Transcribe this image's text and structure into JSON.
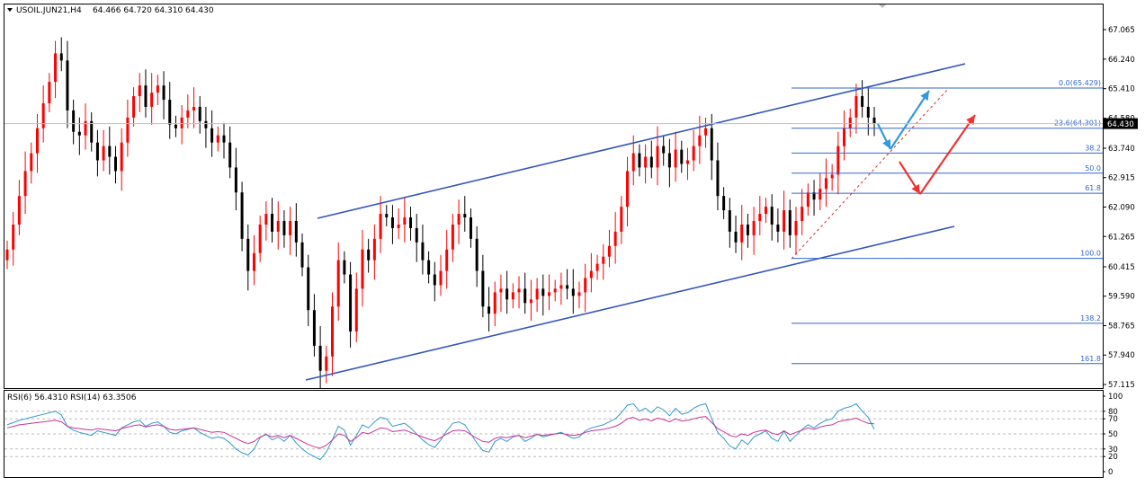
{
  "header": {
    "symbol_timeframe": "USOIL.JUN21,H4",
    "ohlc": "64.466 64.720 64.310 64.430"
  },
  "price_scale": {
    "labels": [
      "67.065",
      "66.240",
      "65.410",
      "64.580",
      "63.740",
      "62.915",
      "62.090",
      "61.265",
      "60.415",
      "59.590",
      "58.765",
      "57.940",
      "57.115"
    ],
    "current_price": "64.430"
  },
  "fibonacci": {
    "levels": [
      {
        "label": "0.0(65.429)",
        "price": 65.429
      },
      {
        "label": "23.6(64.301)",
        "price": 64.301
      },
      {
        "label": "38.2",
        "price": 63.603
      },
      {
        "label": "50.0",
        "price": 63.04
      },
      {
        "label": "61.8",
        "price": 62.476
      },
      {
        "label": "100.0",
        "price": 60.65
      },
      {
        "label": "138.2",
        "price": 58.83
      },
      {
        "label": "161.8",
        "price": 57.7
      }
    ]
  },
  "rsi_panel": {
    "title": "RSI(6) 56.4310  RSI(14) 63.3506",
    "scale_labels": [
      "100",
      "80",
      "70",
      "50",
      "30",
      "20",
      "0"
    ]
  },
  "colors": {
    "bull_candle": "#ff0000",
    "bear_candle": "#000000",
    "channel_line": "#3355bb",
    "fib_line": "#3366cc",
    "arrow_blue": "#3399dd",
    "arrow_red": "#ee3333",
    "rsi6": "#3399cc",
    "rsi14": "#cc3399"
  },
  "chart_data": {
    "type": "candlestick",
    "title": "USOIL.JUN21,H4",
    "ylim": [
      57.0,
      67.6
    ],
    "series_close": [
      60.9,
      61.6,
      62.4,
      63.1,
      63.6,
      64.3,
      65.0,
      65.6,
      66.4,
      66.2,
      64.8,
      64.2,
      64.1,
      64.5,
      63.9,
      63.4,
      63.8,
      63.5,
      63.1,
      63.9,
      64.6,
      65.2,
      65.5,
      64.9,
      65.3,
      65.5,
      65.1,
      64.4,
      64.3,
      64.6,
      64.8,
      64.9,
      64.5,
      64.3,
      63.9,
      64.1,
      63.9,
      63.2,
      62.5,
      61.2,
      60.3,
      60.8,
      61.6,
      61.9,
      61.4,
      61.7,
      61.3,
      61.7,
      61.1,
      60.4,
      59.2,
      58.2,
      57.5,
      57.9,
      59.3,
      60.6,
      60.2,
      58.6,
      59.8,
      60.9,
      60.6,
      61.2,
      61.9,
      61.8,
      61.5,
      61.6,
      61.8,
      61.5,
      61.1,
      60.6,
      60.2,
      59.9,
      60.3,
      60.9,
      61.6,
      61.9,
      61.8,
      61.2,
      60.3,
      59.3,
      59.1,
      59.7,
      59.8,
      59.5,
      59.7,
      59.8,
      59.4,
      59.5,
      59.8,
      59.6,
      59.7,
      59.8,
      59.9,
      59.8,
      59.6,
      59.7,
      60.1,
      60.3,
      60.5,
      60.7,
      61.0,
      61.4,
      62.1,
      63.1,
      63.6,
      63.2,
      63.5,
      63.2,
      63.8,
      63.6,
      63.2,
      63.7,
      63.3,
      63.4,
      63.8,
      64.1,
      64.3,
      63.4,
      62.4,
      62.0,
      61.4,
      61.1,
      61.6,
      61.3,
      61.7,
      61.9,
      62.1,
      61.6,
      61.4,
      62.0,
      61.3,
      61.7,
      62.1,
      62.5,
      62.3,
      62.6,
      62.9,
      63.0,
      63.8,
      64.3,
      64.6,
      65.2,
      64.9,
      64.6,
      64.43
    ],
    "rsi6": [
      62,
      65,
      68,
      70,
      72,
      74,
      76,
      78,
      80,
      75,
      60,
      55,
      52,
      50,
      48,
      54,
      52,
      50,
      48,
      58,
      62,
      66,
      68,
      60,
      64,
      66,
      60,
      52,
      50,
      54,
      56,
      58,
      52,
      48,
      44,
      46,
      44,
      38,
      30,
      25,
      22,
      30,
      45,
      50,
      42,
      46,
      40,
      48,
      38,
      30,
      24,
      20,
      16,
      26,
      42,
      60,
      55,
      35,
      48,
      62,
      58,
      66,
      72,
      70,
      60,
      62,
      64,
      58,
      50,
      42,
      36,
      32,
      42,
      54,
      64,
      66,
      62,
      50,
      38,
      28,
      26,
      40,
      44,
      40,
      46,
      48,
      40,
      44,
      50,
      46,
      48,
      50,
      52,
      48,
      44,
      46,
      54,
      58,
      60,
      62,
      66,
      70,
      78,
      88,
      90,
      80,
      84,
      78,
      86,
      82,
      74,
      84,
      76,
      78,
      84,
      88,
      90,
      70,
      52,
      44,
      34,
      30,
      42,
      36,
      46,
      50,
      54,
      44,
      40,
      54,
      40,
      48,
      56,
      62,
      58,
      64,
      68,
      70,
      80,
      84,
      86,
      90,
      80,
      72,
      56
    ],
    "rsi14": [
      58,
      60,
      62,
      63,
      64,
      65,
      66,
      67,
      68,
      66,
      60,
      58,
      57,
      56,
      55,
      57,
      56,
      55,
      54,
      57,
      59,
      61,
      62,
      59,
      61,
      62,
      60,
      56,
      55,
      56,
      57,
      58,
      56,
      54,
      52,
      53,
      52,
      48,
      44,
      40,
      37,
      40,
      46,
      49,
      46,
      48,
      45,
      48,
      44,
      40,
      36,
      33,
      31,
      35,
      42,
      50,
      48,
      40,
      45,
      52,
      50,
      54,
      58,
      57,
      53,
      54,
      55,
      52,
      49,
      46,
      43,
      41,
      45,
      50,
      54,
      55,
      54,
      49,
      44,
      40,
      39,
      44,
      46,
      45,
      47,
      48,
      45,
      47,
      49,
      48,
      49,
      50,
      51,
      49,
      48,
      49,
      52,
      54,
      55,
      56,
      58,
      60,
      64,
      70,
      72,
      68,
      70,
      67,
      71,
      69,
      66,
      70,
      67,
      68,
      70,
      72,
      73,
      65,
      57,
      53,
      48,
      46,
      50,
      48,
      52,
      54,
      55,
      51,
      49,
      54,
      49,
      52,
      55,
      58,
      56,
      59,
      61,
      62,
      66,
      68,
      69,
      71,
      67,
      64,
      63.35
    ]
  }
}
